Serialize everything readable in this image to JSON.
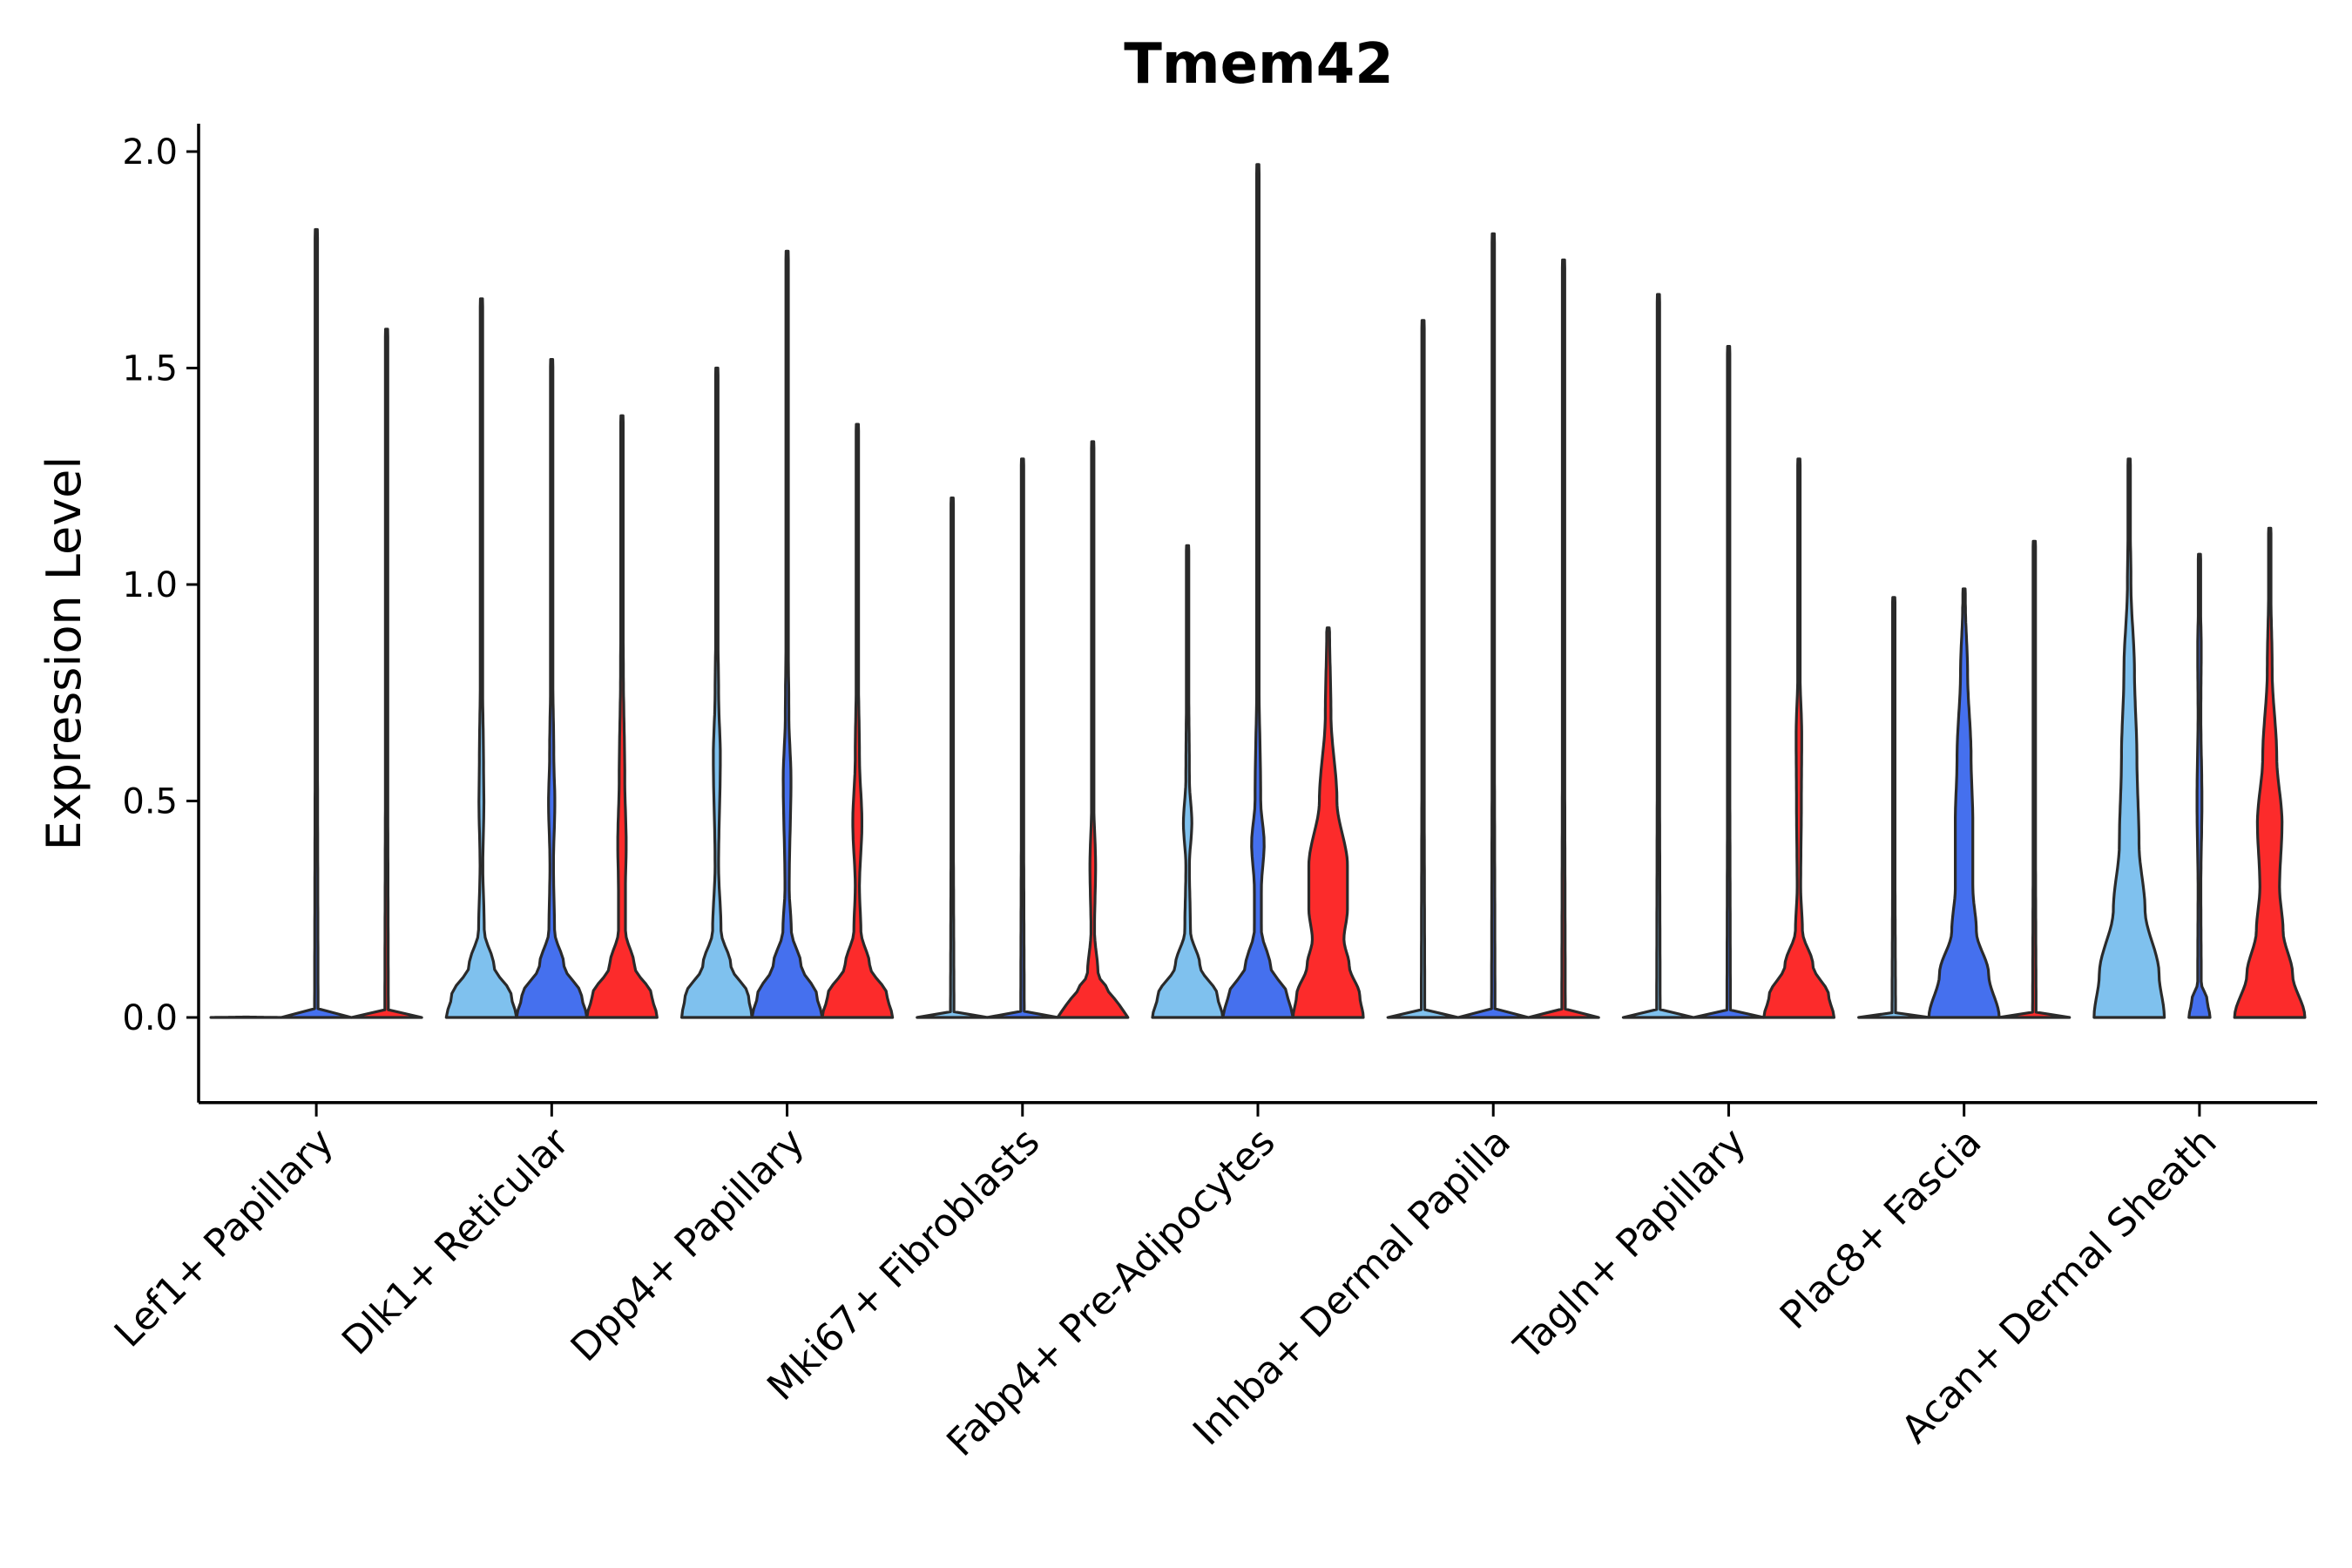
{
  "chart_data": {
    "type": "violin",
    "title": "Tmem42",
    "xlabel": "",
    "ylabel": "Expression Level",
    "ylim": [
      -0.1,
      2.05
    ],
    "yticks": [
      0.0,
      0.5,
      1.0,
      1.5,
      2.0
    ],
    "ytick_labels": [
      "0.0",
      "0.5",
      "1.0",
      "1.5",
      "2.0"
    ],
    "categories": [
      "Lef1+ Papillary",
      "Dlk1+ Reticular",
      "Dpp4+ Papillary",
      "Mki67+ Fibroblasts",
      "Fabp4+ Pre-Adipocytes",
      "Inhba+ Dermal Papilla",
      "Tagln+ Papillary",
      "Plac8+ Fascia",
      "Acan+ Dermal Sheath"
    ],
    "series_colors": [
      "#7fc1ee",
      "#4570ee",
      "#fc2b2b"
    ],
    "violins": [
      [
        {
          "max": 0.0,
          "profile": [
            [
              0,
              1
            ],
            [
              0.01,
              0.05
            ]
          ]
        },
        {
          "max": 1.82,
          "profile": [
            [
              0,
              1
            ],
            [
              0.01,
              0.05
            ]
          ]
        },
        {
          "max": 1.59,
          "profile": [
            [
              0,
              1
            ],
            [
              0.01,
              0.05
            ]
          ]
        }
      ],
      [
        {
          "max": 1.66,
          "profile": [
            [
              0,
              1
            ],
            [
              0.05,
              0.85
            ],
            [
              0.12,
              0.35
            ],
            [
              0.2,
              0.08
            ],
            [
              0.35,
              0.04
            ],
            [
              0.5,
              0.07
            ],
            [
              0.58,
              0.06
            ],
            [
              0.8,
              0.03
            ],
            [
              1.0,
              0.02
            ]
          ]
        },
        {
          "max": 1.52,
          "profile": [
            [
              0,
              1
            ],
            [
              0.05,
              0.85
            ],
            [
              0.12,
              0.35
            ],
            [
              0.2,
              0.08
            ],
            [
              0.35,
              0.05
            ],
            [
              0.5,
              0.09
            ],
            [
              0.6,
              0.06
            ],
            [
              0.8,
              0.03
            ],
            [
              1.0,
              0.02
            ]
          ]
        },
        {
          "max": 1.39,
          "profile": [
            [
              0,
              1
            ],
            [
              0.05,
              0.85
            ],
            [
              0.12,
              0.35
            ],
            [
              0.2,
              0.1
            ],
            [
              0.3,
              0.1
            ],
            [
              0.4,
              0.12
            ],
            [
              0.55,
              0.08
            ],
            [
              0.8,
              0.04
            ],
            [
              1.0,
              0.02
            ]
          ]
        }
      ],
      [
        {
          "max": 1.5,
          "profile": [
            [
              0,
              1
            ],
            [
              0.05,
              0.9
            ],
            [
              0.12,
              0.4
            ],
            [
              0.2,
              0.12
            ],
            [
              0.35,
              0.05
            ],
            [
              0.6,
              0.1
            ],
            [
              0.75,
              0.05
            ],
            [
              0.9,
              0.03
            ],
            [
              1.0,
              0.02
            ]
          ]
        },
        {
          "max": 1.77,
          "profile": [
            [
              0,
              1
            ],
            [
              0.05,
              0.85
            ],
            [
              0.12,
              0.4
            ],
            [
              0.2,
              0.12
            ],
            [
              0.3,
              0.06
            ],
            [
              0.55,
              0.11
            ],
            [
              0.7,
              0.05
            ],
            [
              0.9,
              0.03
            ],
            [
              1.0,
              0.02
            ]
          ]
        },
        {
          "max": 1.37,
          "profile": [
            [
              0,
              1
            ],
            [
              0.05,
              0.85
            ],
            [
              0.12,
              0.35
            ],
            [
              0.2,
              0.1
            ],
            [
              0.3,
              0.06
            ],
            [
              0.45,
              0.13
            ],
            [
              0.6,
              0.06
            ],
            [
              0.8,
              0.03
            ],
            [
              1.0,
              0.02
            ]
          ]
        }
      ],
      [
        {
          "max": 1.2,
          "profile": [
            [
              0,
              1
            ],
            [
              0.01,
              0.05
            ]
          ]
        },
        {
          "max": 1.29,
          "profile": [
            [
              0,
              1
            ],
            [
              0.01,
              0.05
            ]
          ]
        },
        {
          "max": 1.33,
          "profile": [
            [
              0,
              1
            ],
            [
              0.03,
              0.75
            ],
            [
              0.06,
              0.45
            ],
            [
              0.1,
              0.15
            ],
            [
              0.2,
              0.05
            ],
            [
              0.35,
              0.08
            ],
            [
              0.5,
              0.03
            ],
            [
              0.8,
              0.02
            ],
            [
              1.0,
              0.01
            ]
          ]
        }
      ],
      [
        {
          "max": 1.09,
          "profile": [
            [
              0,
              1
            ],
            [
              0.05,
              0.85
            ],
            [
              0.12,
              0.35
            ],
            [
              0.2,
              0.08
            ],
            [
              0.35,
              0.05
            ],
            [
              0.45,
              0.12
            ],
            [
              0.55,
              0.05
            ],
            [
              0.8,
              0.03
            ],
            [
              1.0,
              0.02
            ]
          ]
        },
        {
          "max": 1.97,
          "profile": [
            [
              0,
              1
            ],
            [
              0.05,
              0.85
            ],
            [
              0.12,
              0.35
            ],
            [
              0.2,
              0.1
            ],
            [
              0.3,
              0.1
            ],
            [
              0.4,
              0.18
            ],
            [
              0.5,
              0.08
            ],
            [
              0.8,
              0.03
            ],
            [
              1.0,
              0.02
            ]
          ]
        },
        {
          "max": 0.9,
          "profile": [
            [
              0,
              1
            ],
            [
              0.05,
              0.9
            ],
            [
              0.12,
              0.6
            ],
            [
              0.18,
              0.45
            ],
            [
              0.25,
              0.55
            ],
            [
              0.35,
              0.55
            ],
            [
              0.5,
              0.25
            ],
            [
              0.7,
              0.08
            ],
            [
              0.9,
              0.04
            ]
          ]
        }
      ],
      [
        {
          "max": 1.61,
          "profile": [
            [
              0,
              1
            ],
            [
              0.01,
              0.05
            ]
          ]
        },
        {
          "max": 1.81,
          "profile": [
            [
              0,
              1
            ],
            [
              0.01,
              0.05
            ]
          ]
        },
        {
          "max": 1.75,
          "profile": [
            [
              0,
              1
            ],
            [
              0.01,
              0.05
            ]
          ]
        }
      ],
      [
        {
          "max": 1.67,
          "profile": [
            [
              0,
              1
            ],
            [
              0.01,
              0.05
            ]
          ]
        },
        {
          "max": 1.55,
          "profile": [
            [
              0,
              1
            ],
            [
              0.01,
              0.05
            ]
          ]
        },
        {
          "max": 1.29,
          "profile": [
            [
              0,
              1
            ],
            [
              0.05,
              0.85
            ],
            [
              0.12,
              0.4
            ],
            [
              0.2,
              0.1
            ],
            [
              0.3,
              0.05
            ],
            [
              0.5,
              0.07
            ],
            [
              0.65,
              0.08
            ],
            [
              0.8,
              0.03
            ],
            [
              1.0,
              0.02
            ]
          ]
        }
      ],
      [
        {
          "max": 0.97,
          "profile": [
            [
              0,
              1
            ],
            [
              0.01,
              0.05
            ]
          ]
        },
        {
          "max": 0.99,
          "profile": [
            [
              0,
              1
            ],
            [
              0.1,
              0.7
            ],
            [
              0.2,
              0.35
            ],
            [
              0.3,
              0.25
            ],
            [
              0.45,
              0.25
            ],
            [
              0.6,
              0.2
            ],
            [
              0.8,
              0.1
            ],
            [
              0.95,
              0.04
            ]
          ]
        },
        {
          "max": 1.1,
          "profile": [
            [
              0,
              1
            ],
            [
              0.01,
              0.05
            ]
          ]
        }
      ],
      [
        {
          "max": 1.29,
          "profile": [
            [
              0,
              1
            ],
            [
              0.1,
              0.85
            ],
            [
              0.25,
              0.45
            ],
            [
              0.4,
              0.28
            ],
            [
              0.6,
              0.22
            ],
            [
              0.8,
              0.15
            ],
            [
              1.0,
              0.05
            ],
            [
              1.2,
              0.02
            ]
          ]
        },
        {
          "max": 1.07,
          "profile": [
            [
              0,
              0.3
            ],
            [
              0.04,
              0.22
            ],
            [
              0.08,
              0.05
            ],
            [
              0.3,
              0.04
            ],
            [
              0.5,
              0.07
            ],
            [
              0.7,
              0.04
            ],
            [
              0.85,
              0.05
            ],
            [
              1.0,
              0.02
            ]
          ]
        },
        {
          "max": 1.13,
          "profile": [
            [
              0,
              1
            ],
            [
              0.1,
              0.65
            ],
            [
              0.2,
              0.38
            ],
            [
              0.3,
              0.28
            ],
            [
              0.45,
              0.35
            ],
            [
              0.6,
              0.2
            ],
            [
              0.8,
              0.07
            ],
            [
              1.0,
              0.03
            ]
          ]
        }
      ]
    ]
  }
}
